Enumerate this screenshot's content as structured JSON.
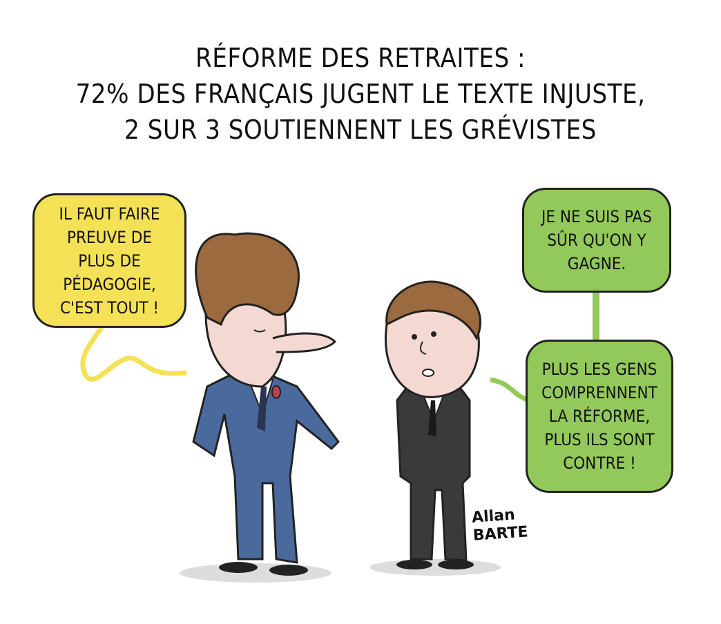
{
  "title": {
    "line1": "Réforme des retraites :",
    "line2": "72% des Français jugent le texte injuste,",
    "line3": "2 sur 3 soutiennent les grévistes"
  },
  "bubbles": {
    "left": "Il faut faire preuve de plus de pédagogie, c'est tout !",
    "right_top": "Je ne suis pas sûr qu'on y gagne.",
    "right_bottom": "Plus les gens comprennent la réforme, plus ils sont contre !"
  },
  "colors": {
    "yellow_bubble": "#f4e155",
    "green_bubble": "#93c95a",
    "blue_suit": "#4a6a9e",
    "dark_suit": "#3a3a3a",
    "hair": "#9b6a3e"
  },
  "signature": {
    "line1": "Allan",
    "line2": "BARTE"
  }
}
